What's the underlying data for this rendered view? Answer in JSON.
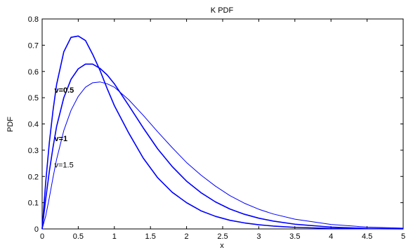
{
  "chart_data": {
    "type": "line",
    "title": "K PDF",
    "xlabel": "x",
    "ylabel": "PDF",
    "xlim": [
      0,
      5
    ],
    "ylim": [
      0,
      0.8
    ],
    "xticks": [
      "0",
      "0.5",
      "1",
      "1.5",
      "2",
      "2.5",
      "3",
      "3.5",
      "4",
      "4.5",
      "5"
    ],
    "yticks": [
      "0",
      "0.1",
      "0.2",
      "0.3",
      "0.4",
      "0.5",
      "0.6",
      "0.7",
      "0.8"
    ],
    "grid": false,
    "series_color": "#0000ff",
    "series": [
      {
        "x": [
          0,
          0.05,
          0.1,
          0.15,
          0.2,
          0.3,
          0.4,
          0.5,
          0.6,
          0.7,
          0.8,
          0.9,
          1.0,
          1.2,
          1.4,
          1.6,
          1.8,
          2.0,
          2.2,
          2.4,
          2.6,
          2.8,
          3.0,
          3.2,
          3.5,
          4.0,
          4.5,
          5.0
        ],
        "values": [
          0,
          0.18,
          0.33,
          0.45,
          0.55,
          0.675,
          0.73,
          0.735,
          0.718,
          0.665,
          0.605,
          0.535,
          0.47,
          0.365,
          0.27,
          0.195,
          0.14,
          0.1,
          0.069,
          0.048,
          0.033,
          0.023,
          0.016,
          0.011,
          0.006,
          0.002,
          0.001,
          0.0
        ]
      },
      {
        "x": [
          0,
          0.05,
          0.1,
          0.15,
          0.2,
          0.3,
          0.4,
          0.5,
          0.6,
          0.7,
          0.8,
          0.9,
          1.0,
          1.2,
          1.4,
          1.6,
          1.8,
          2.0,
          2.2,
          2.4,
          2.6,
          2.8,
          3.0,
          3.2,
          3.5,
          4.0,
          4.5,
          5.0
        ],
        "values": [
          0,
          0.115,
          0.22,
          0.31,
          0.39,
          0.5,
          0.57,
          0.61,
          0.628,
          0.628,
          0.612,
          0.587,
          0.553,
          0.47,
          0.385,
          0.305,
          0.238,
          0.182,
          0.138,
          0.103,
          0.076,
          0.056,
          0.041,
          0.03,
          0.018,
          0.007,
          0.002,
          0.001
        ]
      },
      {
        "x": [
          0,
          0.05,
          0.1,
          0.15,
          0.2,
          0.3,
          0.4,
          0.5,
          0.6,
          0.7,
          0.8,
          0.9,
          1.0,
          1.2,
          1.4,
          1.6,
          1.8,
          2.0,
          2.2,
          2.4,
          2.6,
          2.8,
          3.0,
          3.2,
          3.5,
          4.0,
          4.5,
          5.0
        ],
        "values": [
          0,
          0.05,
          0.12,
          0.195,
          0.265,
          0.375,
          0.452,
          0.505,
          0.54,
          0.557,
          0.56,
          0.553,
          0.54,
          0.492,
          0.433,
          0.37,
          0.31,
          0.253,
          0.205,
          0.163,
          0.127,
          0.098,
          0.075,
          0.057,
          0.037,
          0.017,
          0.007,
          0.003
        ]
      }
    ],
    "annotations": [
      {
        "text": "v=0.5",
        "x": 0.17,
        "y": 0.53
      },
      {
        "text": "v=1",
        "x": 0.17,
        "y": 0.345
      },
      {
        "text": "v=1.5",
        "x": 0.17,
        "y": 0.245
      }
    ]
  }
}
